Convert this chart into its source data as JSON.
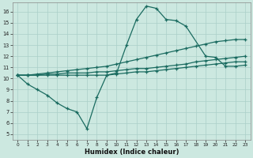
{
  "xlabel": "Humidex (Indice chaleur)",
  "background_color": "#cce8e0",
  "grid_color": "#aacfc8",
  "line_color": "#1a6b60",
  "xlim": [
    -0.5,
    23.5
  ],
  "ylim": [
    4.5,
    16.8
  ],
  "xticks": [
    0,
    1,
    2,
    3,
    4,
    5,
    6,
    7,
    8,
    9,
    10,
    11,
    12,
    13,
    14,
    15,
    16,
    17,
    18,
    19,
    20,
    21,
    22,
    23
  ],
  "yticks": [
    5,
    6,
    7,
    8,
    9,
    10,
    11,
    12,
    13,
    14,
    15,
    16
  ],
  "line_jagged_x": [
    0,
    1,
    2,
    3,
    4,
    5,
    6,
    7,
    8,
    9,
    10,
    11,
    12,
    13,
    14,
    15,
    16,
    17,
    19,
    20,
    21,
    22,
    23
  ],
  "line_jagged_y": [
    10.3,
    9.5,
    9.0,
    8.5,
    7.8,
    7.3,
    7.0,
    5.5,
    8.3,
    10.3,
    10.5,
    13.0,
    15.3,
    16.5,
    16.3,
    15.3,
    15.2,
    14.7,
    12.0,
    11.9,
    11.1,
    11.1,
    11.2
  ],
  "line_upper_x": [
    0,
    1,
    2,
    3,
    4,
    5,
    6,
    7,
    8,
    9,
    10,
    11,
    12,
    13,
    14,
    15,
    16,
    17,
    18,
    19,
    20,
    21,
    22,
    23
  ],
  "line_upper_y": [
    10.3,
    10.3,
    10.4,
    10.5,
    10.6,
    10.7,
    10.8,
    10.9,
    11.0,
    11.1,
    11.3,
    11.5,
    11.7,
    11.9,
    12.1,
    12.3,
    12.5,
    12.7,
    12.9,
    13.1,
    13.3,
    13.4,
    13.5,
    13.5
  ],
  "line_mid_x": [
    0,
    1,
    2,
    3,
    4,
    5,
    6,
    7,
    8,
    9,
    10,
    11,
    12,
    13,
    14,
    15,
    16,
    17,
    18,
    19,
    20,
    21,
    22,
    23
  ],
  "line_mid_y": [
    10.3,
    10.3,
    10.3,
    10.4,
    10.4,
    10.5,
    10.5,
    10.5,
    10.6,
    10.6,
    10.7,
    10.8,
    10.9,
    10.9,
    11.0,
    11.1,
    11.2,
    11.3,
    11.5,
    11.6,
    11.7,
    11.8,
    11.9,
    12.0
  ],
  "line_lower_x": [
    0,
    1,
    2,
    3,
    4,
    5,
    6,
    7,
    8,
    9,
    10,
    11,
    12,
    13,
    14,
    15,
    16,
    17,
    18,
    19,
    20,
    21,
    22,
    23
  ],
  "line_lower_y": [
    10.3,
    10.3,
    10.3,
    10.3,
    10.3,
    10.3,
    10.3,
    10.3,
    10.3,
    10.3,
    10.4,
    10.5,
    10.6,
    10.6,
    10.7,
    10.8,
    10.9,
    11.0,
    11.1,
    11.2,
    11.3,
    11.4,
    11.5,
    11.5
  ]
}
